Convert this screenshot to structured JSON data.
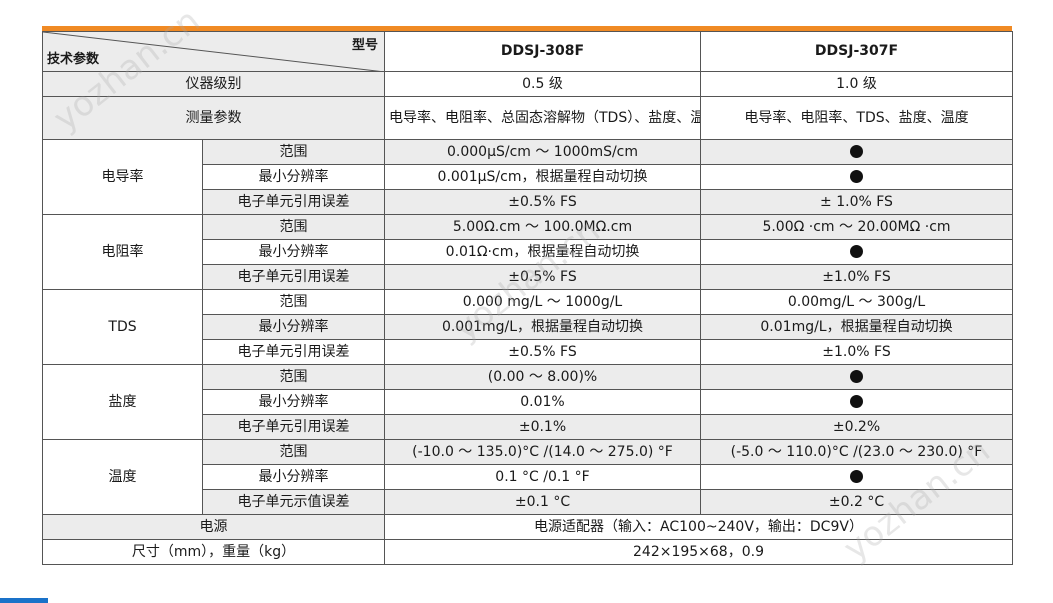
{
  "header": {
    "corner_model_label": "型号",
    "corner_param_label": "技术参数",
    "model_a": "DDSJ-308F",
    "model_b": "DDSJ-307F"
  },
  "rows": {
    "grade": {
      "label": "仪器级别",
      "a": "0.5 级",
      "b": "1.0 级"
    },
    "measure": {
      "label": "测量参数",
      "a": "电导率、电阻率、总固态溶解物（TDS）、盐度、温度",
      "b": "电导率、电阻率、TDS、盐度、温度"
    }
  },
  "groups": {
    "conductivity": {
      "label": "电导率",
      "range": {
        "label": "范围",
        "a": "0.000μS/cm ～ 1000mS/cm",
        "b_dot": true
      },
      "resolution": {
        "label": "最小分辨率",
        "a": "0.001μS/cm，根据量程自动切换",
        "b_dot": true
      },
      "error": {
        "label": "电子单元引用误差",
        "a": "±0.5% FS",
        "b": "± 1.0% FS"
      }
    },
    "resistivity": {
      "label": "电阻率",
      "range": {
        "label": "范围",
        "a": "5.00Ω.cm ～ 100.0MΩ.cm",
        "b": "5.00Ω ·cm ～ 20.00MΩ ·cm"
      },
      "resolution": {
        "label": "最小分辨率",
        "a": "0.01Ω·cm，根据量程自动切换",
        "b_dot": true
      },
      "error": {
        "label": "电子单元引用误差",
        "a": "±0.5% FS",
        "b": "±1.0% FS"
      }
    },
    "tds": {
      "label": "TDS",
      "range": {
        "label": "范围",
        "a": "0.000 mg/L ～ 1000g/L",
        "b": "0.00mg/L ～ 300g/L"
      },
      "resolution": {
        "label": "最小分辨率",
        "a": "0.001mg/L，根据量程自动切换",
        "b": "0.01mg/L，根据量程自动切换"
      },
      "error": {
        "label": "电子单元引用误差",
        "a": "±0.5% FS",
        "b": "±1.0% FS"
      }
    },
    "salinity": {
      "label": "盐度",
      "range": {
        "label": "范围",
        "a": "(0.00 ～ 8.00)%",
        "b_dot": true
      },
      "resolution": {
        "label": "最小分辨率",
        "a": "0.01%",
        "b_dot": true
      },
      "error": {
        "label": "电子单元引用误差",
        "a": "±0.1%",
        "b": "±0.2%"
      }
    },
    "temperature": {
      "label": "温度",
      "range": {
        "label": "范围",
        "a": "(-10.0 ～ 135.0)°C /(14.0 ～ 275.0) °F",
        "b": "(-5.0 ～ 110.0)°C /(23.0 ～ 230.0) °F"
      },
      "resolution": {
        "label": "最小分辨率",
        "a": "0.1 °C /0.1 °F",
        "b_dot": true
      },
      "error": {
        "label": "电子单元示值误差",
        "a": "±0.1 °C",
        "b": "±0.2 °C"
      }
    }
  },
  "footer_rows": {
    "power": {
      "label": "电源",
      "value": "电源适配器（输入：AC100~240V，输出：DC9V）"
    },
    "size": {
      "label": "尺寸（mm），重量（kg）",
      "value": "242×195×68，0.9"
    }
  },
  "watermarks": [
    "yozhan.cn",
    "yozhan.cn",
    "yozhan.cn"
  ],
  "colors": {
    "accent_orange": "#f08a24",
    "row_shade": "#ececec",
    "accent_blue": "#1a72c9",
    "border": "#555555"
  },
  "icons": {
    "supported_marker": "filled-circle"
  }
}
